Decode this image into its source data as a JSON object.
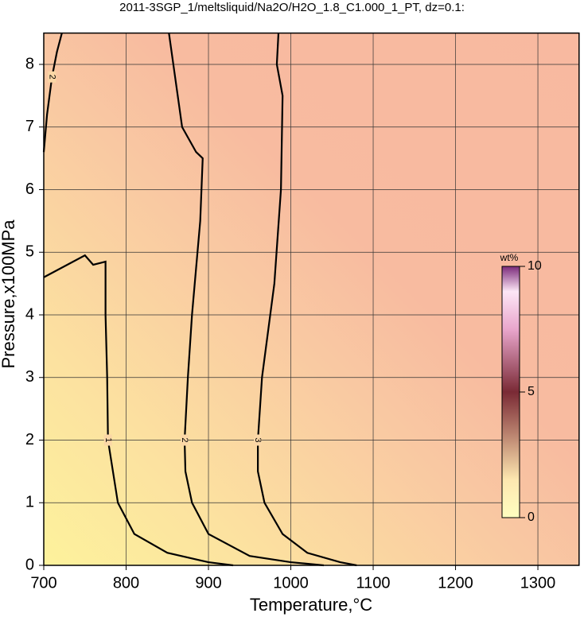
{
  "chart_data": {
    "type": "contour",
    "title": "2011-3SGP_1/meltsliquid/Na2O/H2O_1.8_C1.000_1_PT, dz=0.1:",
    "x_label": "Temperature,°C",
    "y_label": "Pressure,x100MPa",
    "xlim": [
      700,
      1350
    ],
    "ylim": [
      0,
      8.5
    ],
    "xticks": [
      700,
      800,
      900,
      1000,
      1100,
      1200,
      1300
    ],
    "yticks": [
      0,
      1,
      2,
      3,
      4,
      5,
      6,
      7,
      8
    ],
    "grid": true,
    "contours": [
      {
        "level": 1,
        "x": [
          700,
          750,
          760,
          775,
          775,
          777,
          778,
          790,
          810,
          850,
          900,
          930
        ],
        "y": [
          4.6,
          4.95,
          4.8,
          4.85,
          4.0,
          3.0,
          2.0,
          1.0,
          0.5,
          0.2,
          0.05,
          0
        ]
      },
      {
        "level": 2,
        "x": [
          852,
          868,
          885,
          893,
          890,
          880,
          875,
          871,
          872,
          880,
          900,
          950,
          1000,
          1040
        ],
        "y": [
          8.5,
          7.0,
          6.6,
          6.5,
          5.5,
          4.0,
          3.0,
          2.0,
          1.5,
          1.0,
          0.5,
          0.15,
          0.05,
          0
        ]
      },
      {
        "level": 2,
        "x": [
          700,
          704,
          710,
          716,
          722
        ],
        "y": [
          6.6,
          7.2,
          7.8,
          8.2,
          8.5
        ]
      },
      {
        "level": 3,
        "x": [
          985,
          983,
          990,
          988,
          980,
          965,
          960,
          960,
          968,
          990,
          1020,
          1060,
          1080
        ],
        "y": [
          8.5,
          8.0,
          7.5,
          6.0,
          4.5,
          3.0,
          2.0,
          1.5,
          1.0,
          0.5,
          0.2,
          0.05,
          0
        ]
      }
    ],
    "colorbar": {
      "label": "wt%",
      "lim": [
        0,
        10
      ],
      "ticks": [
        0,
        5,
        10
      ]
    }
  }
}
